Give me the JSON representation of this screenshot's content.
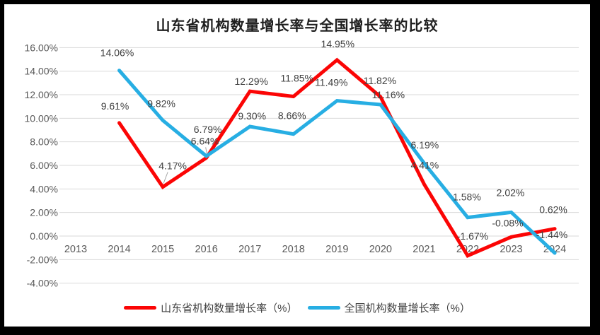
{
  "chart_data": {
    "type": "line",
    "title": "山东省机构数量增长率与全国增长率的比较",
    "categories": [
      "2013",
      "2014",
      "2015",
      "2016",
      "2017",
      "2018",
      "2019",
      "2020",
      "2021",
      "2022",
      "2023",
      "2024"
    ],
    "series": [
      {
        "name": "山东省机构数量增长率（%）",
        "color": "#FB0505",
        "values": [
          null,
          9.61,
          4.17,
          6.64,
          12.29,
          11.85,
          14.95,
          11.82,
          4.41,
          -1.67,
          -0.08,
          0.62
        ],
        "labels": [
          "",
          "9.61%",
          "4.17%",
          "6.64%",
          "12.29%",
          "11.85%",
          "14.95%",
          "11.82%",
          "4.41%",
          "-1.67%",
          "-0.08%",
          "0.62%"
        ],
        "label_offsets": [
          [
            0,
            0
          ],
          [
            -6,
            -24
          ],
          [
            14,
            -30
          ],
          [
            -2,
            -24
          ],
          [
            2,
            -14
          ],
          [
            5,
            -26
          ],
          [
            1,
            -23
          ],
          [
            -1,
            -23
          ],
          [
            1,
            -27
          ],
          [
            7,
            -28
          ],
          [
            -5,
            -20
          ],
          [
            -2,
            -27
          ]
        ]
      },
      {
        "name": "全国机构数量增长率（%）",
        "color": "#27AEE3",
        "values": [
          null,
          14.06,
          9.82,
          6.79,
          9.3,
          8.66,
          11.49,
          11.16,
          6.19,
          1.58,
          2.02,
          -1.44
        ],
        "labels": [
          "",
          "14.06%",
          "9.82%",
          "6.79%",
          "9.30%",
          "8.66%",
          "11.49%",
          "11.16%",
          "6.19%",
          "1.58%",
          "2.02%",
          "-1.44%"
        ],
        "label_offsets": [
          [
            0,
            0
          ],
          [
            -3,
            -25
          ],
          [
            -2,
            -24
          ],
          [
            2,
            -38
          ],
          [
            3,
            -15
          ],
          [
            -2,
            -26
          ],
          [
            -8,
            -26
          ],
          [
            11,
            -14
          ],
          [
            1,
            -26
          ],
          [
            -1,
            -29
          ],
          [
            -1,
            -28
          ],
          [
            -4,
            -26
          ]
        ]
      }
    ],
    "y_axis": {
      "min": -4,
      "max": 16,
      "ticks": [
        16,
        14,
        12,
        10,
        8,
        6,
        4,
        2,
        0,
        -2,
        -4
      ],
      "tick_labels": [
        "16.00%",
        "14.00%",
        "12.00%",
        "10.00%",
        "8.00%",
        "6.00%",
        "4.00%",
        "2.00%",
        "0.00%",
        "-2.00%",
        "-4.00%"
      ]
    },
    "grid": true,
    "legend_position": "bottom",
    "leader_lines": [
      {
        "series": 0,
        "point": 2
      },
      {
        "series": 0,
        "point": 3
      }
    ],
    "colors": {
      "gridline": "#D9D9D9",
      "axis_text": "#595959",
      "label_text": "#404040",
      "title_text": "#1F1F1F",
      "leader": "#A6A6A6",
      "frame": "#000000",
      "surface": "#FFFFFF"
    }
  }
}
